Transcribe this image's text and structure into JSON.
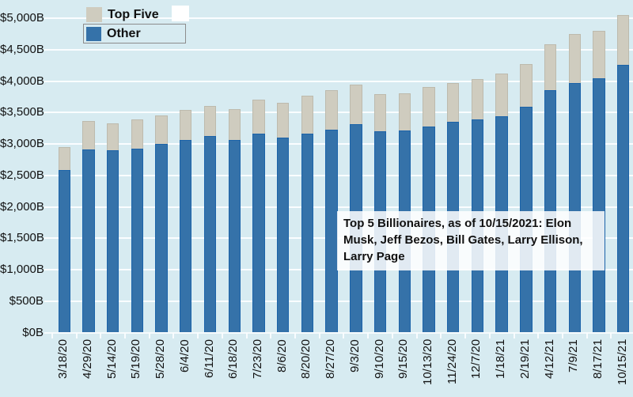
{
  "chart": {
    "background_color": "#d7ebf1",
    "legend": {
      "items": [
        {
          "label": "Top Five",
          "color": "#cfccbf"
        },
        {
          "label": "Other",
          "color": "#3572a9",
          "selected": true
        }
      ],
      "white_swatch_color": "#ffffff"
    },
    "annotation": "Top 5 Billionaires, as of 10/15/2021: Elon Musk, Jeff Bezos, Bill Gates, Larry Ellison, Larry Page",
    "y_axis_labels": [
      "$5,000B",
      "$4,500B",
      "$4,000B",
      "$3,500B",
      "$3,000B",
      "$2,500B",
      "$2,000B",
      "$1,500B",
      "$1,000B",
      "$500B",
      "$0B"
    ]
  },
  "chart_data": {
    "type": "bar",
    "stacked": true,
    "title": "",
    "categories": [
      "3/18/20",
      "4/29/20",
      "5/14/20",
      "5/19/20",
      "5/28/20",
      "6/4/20",
      "6/11/20",
      "6/18/20",
      "7/23/20",
      "8/6/20",
      "8/20/20",
      "8/27/20",
      "9/3/20",
      "9/10/20",
      "9/15/20",
      "10/13/20",
      "11/24/20",
      "12/7/20",
      "1/18/21",
      "2/19/21",
      "4/12/21",
      "7/9/21",
      "8/17/21",
      "10/15/21"
    ],
    "series": [
      {
        "name": "Other",
        "color": "#3572a9",
        "values": [
          2590,
          2910,
          2895,
          2930,
          2995,
          3065,
          3120,
          3065,
          3165,
          3105,
          3165,
          3230,
          3315,
          3205,
          3220,
          3280,
          3355,
          3385,
          3435,
          3585,
          3850,
          3965,
          4045,
          4255
        ]
      },
      {
        "name": "Top Five",
        "color": "#cfccbf",
        "values": [
          355,
          455,
          435,
          455,
          455,
          475,
          490,
          490,
          535,
          555,
          600,
          620,
          625,
          590,
          585,
          620,
          610,
          650,
          685,
          690,
          740,
          785,
          755,
          800
        ]
      }
    ],
    "totals": [
      2945,
      3365,
      3330,
      3385,
      3450,
      3540,
      3610,
      3555,
      3700,
      3660,
      3765,
      3850,
      3940,
      3795,
      3805,
      3900,
      3965,
      4035,
      4120,
      4275,
      4590,
      4750,
      4800,
      5055
    ],
    "xlabel": "",
    "ylabel": "",
    "ylim": [
      0,
      5000
    ],
    "y_tick_step": 500,
    "y_tick_prefix": "$",
    "y_tick_suffix": "B",
    "grid": true,
    "gridline_color": "#fcfeff",
    "legend_position": "top-left"
  }
}
